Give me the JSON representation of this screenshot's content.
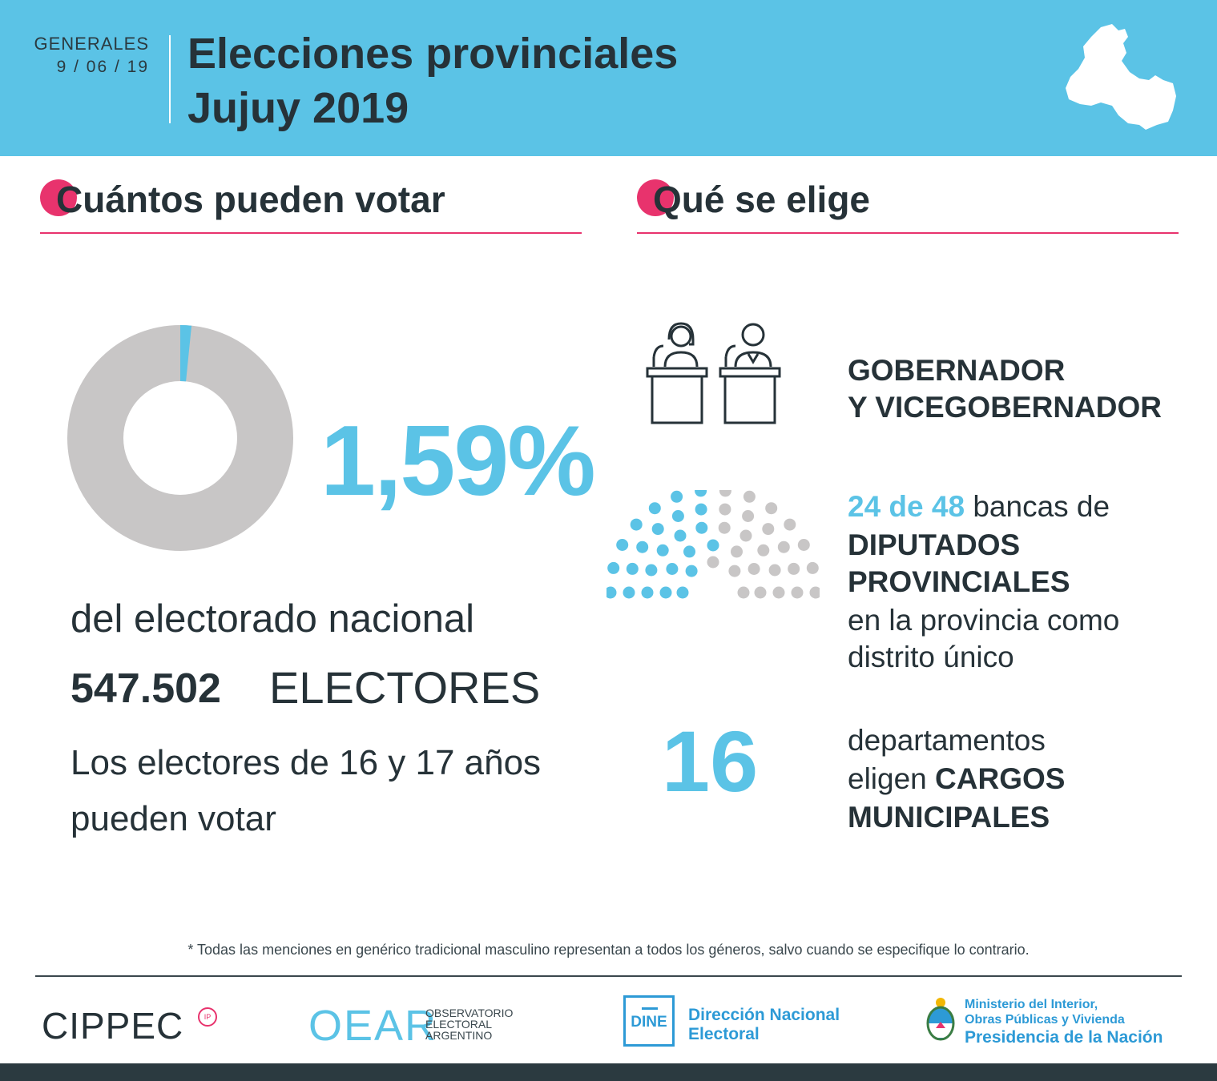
{
  "header": {
    "election_type": "GENERALES",
    "date": "9 / 06 / 19",
    "title_line1": "Elecciones provinciales",
    "title_line2": "Jujuy 2019",
    "map_icon": "jujuy-province-map-icon"
  },
  "left": {
    "heading": "Cuántos pueden votar",
    "percent_text": "1,59%",
    "percent_value": 1.59,
    "percent_caption": "del electorado nacional",
    "electores_number": "547.502",
    "electores_label": "ELECTORES",
    "note_line1": "Los electores de 16 y 17 años",
    "note_line2": "pueden votar"
  },
  "right": {
    "heading": "Qué se elige",
    "gob_line1": "GOBERNADOR",
    "gob_line2": "Y VICEGOBERNADOR",
    "seats_elected": 24,
    "seats_total": 48,
    "bancas_highlight": "24 de 48",
    "bancas_rest": " bancas de",
    "dip_line1": "DIPUTADOS",
    "dip_line2": "PROVINCIALES",
    "dip_line3": "en la provincia como",
    "dip_line4": "distrito único",
    "departamentos_number": "16",
    "dep_line1": "departamentos",
    "dep_line2_a": "eligen ",
    "dep_line2_b": "CARGOS",
    "dep_line3": "MUNICIPALES"
  },
  "footer": {
    "footnote": "* Todas las menciones en genérico tradicional masculino representan a todos los géneros, salvo cuando se especifique lo contrario.",
    "cippec": "CIPPEC",
    "cippec_badge": "IP",
    "oear": "OEAR",
    "oear_sub1": "OBSERVATORIO",
    "oear_sub2": "ELECTORAL",
    "oear_sub3": "ARGENTINO",
    "dine": "DINE",
    "dne_line1": "Dirección Nacional",
    "dne_line2": "Electoral",
    "ministry_line1": "Ministerio del Interior,",
    "ministry_line2": "Obras Públicas y Vivienda",
    "ministry_line3": "Presidencia de la Nación"
  },
  "colors": {
    "accent_blue": "#5bc3e6",
    "accent_pink": "#e8336d",
    "grey": "#c8c6c6",
    "dark": "#263238",
    "gov_blue": "#2d9ad6"
  }
}
